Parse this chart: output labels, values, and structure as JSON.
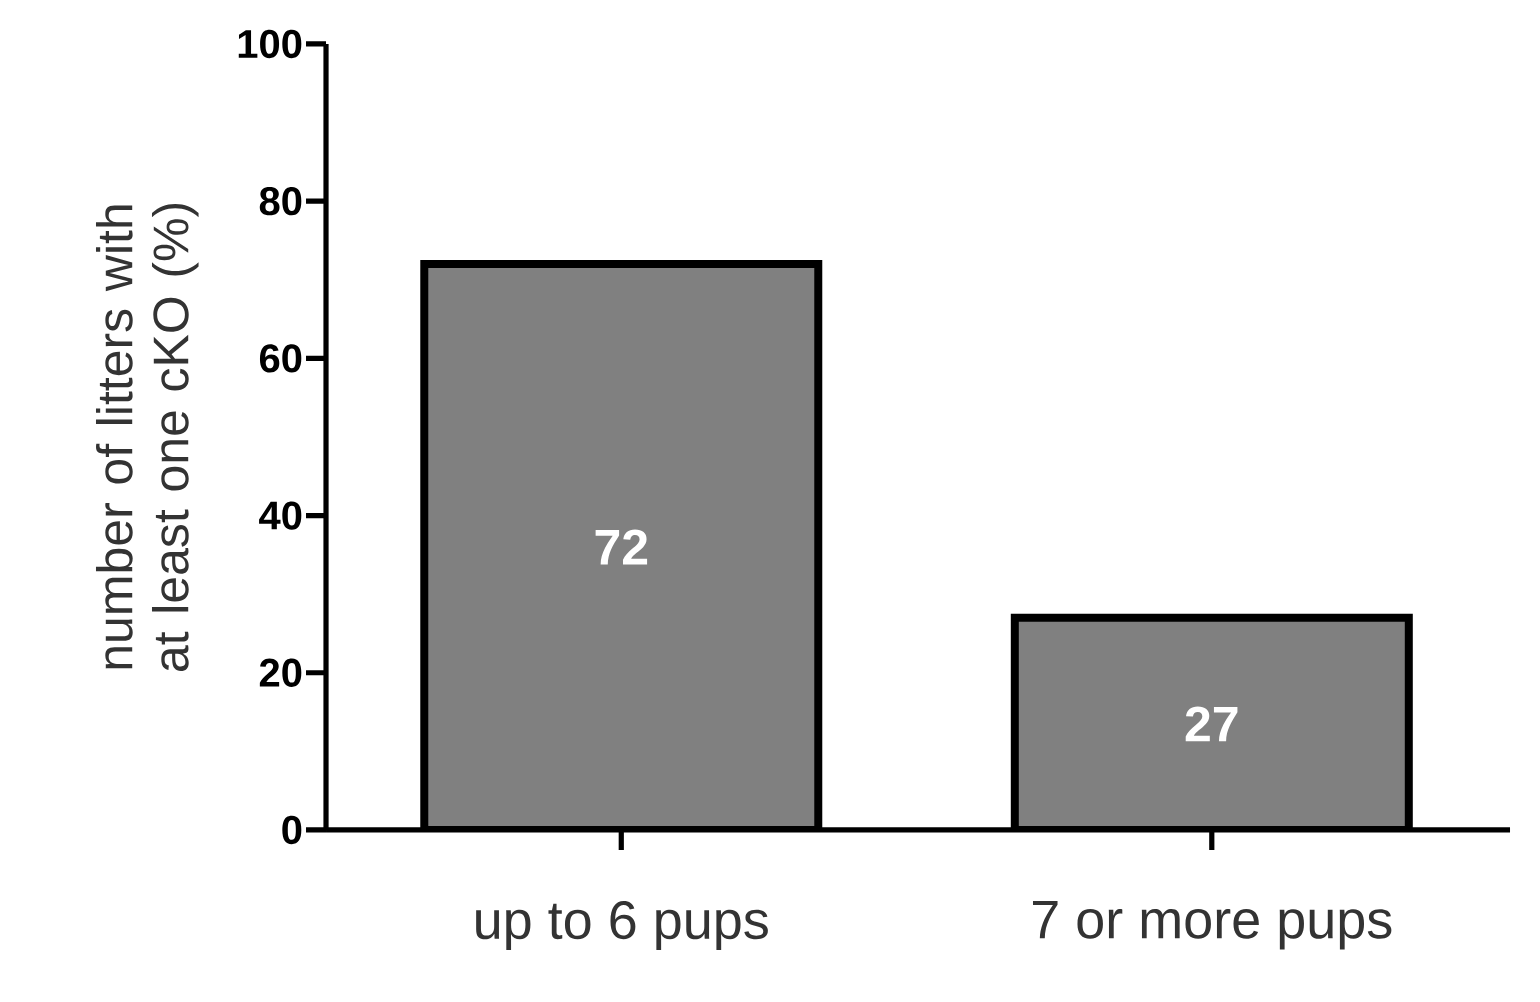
{
  "chart_data": {
    "type": "bar",
    "ylabel": "number of litters with at least one cKO (%)",
    "categories": [
      "up to 6 pups",
      "7 or more pups"
    ],
    "values": [
      72,
      27
    ],
    "color": "#808080",
    "ylim": [
      0,
      100
    ],
    "yticks": [
      0,
      20,
      40,
      60,
      80,
      100
    ],
    "data_labels": true
  }
}
